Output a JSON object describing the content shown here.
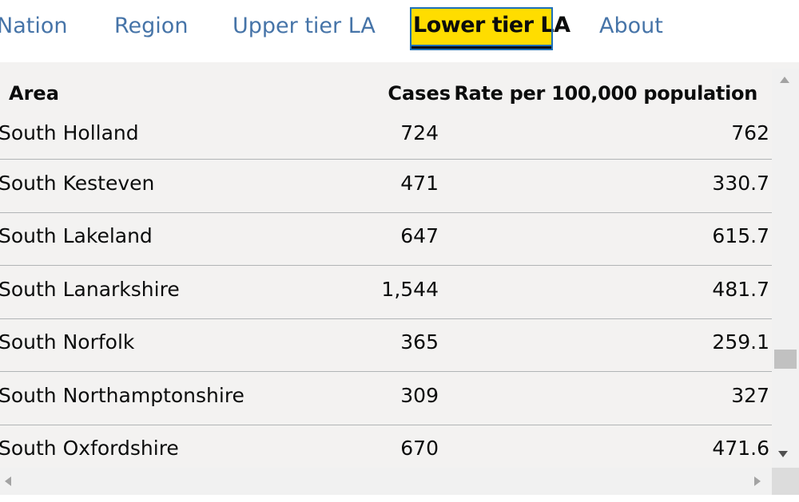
{
  "nav": {
    "tabs": [
      {
        "label": "Nation"
      },
      {
        "label": "Region"
      },
      {
        "label": "Upper tier LA"
      },
      {
        "label": "Lower tier LA",
        "active": true
      },
      {
        "label": "About"
      }
    ]
  },
  "table": {
    "headers": {
      "area": "Area",
      "cases": "Cases",
      "rate": "Rate per 100,000 population"
    },
    "rows": [
      {
        "area": "South Holland",
        "cases": "724",
        "rate": "762"
      },
      {
        "area": "South Kesteven",
        "cases": "471",
        "rate": "330.7"
      },
      {
        "area": "South Lakeland",
        "cases": "647",
        "rate": "615.7"
      },
      {
        "area": "South Lanarkshire",
        "cases": "1,544",
        "rate": "481.7"
      },
      {
        "area": "South Norfolk",
        "cases": "365",
        "rate": "259.1"
      },
      {
        "area": "South Northamptonshire",
        "cases": "309",
        "rate": "327"
      },
      {
        "area": "South Oxfordshire",
        "cases": "670",
        "rate": "471.6"
      }
    ]
  },
  "colors": {
    "link": "#4674a8",
    "active_tab_bg": "#ffdd00",
    "panel_bg": "#f3f2f1",
    "row_divider": "#b1b4b6"
  }
}
